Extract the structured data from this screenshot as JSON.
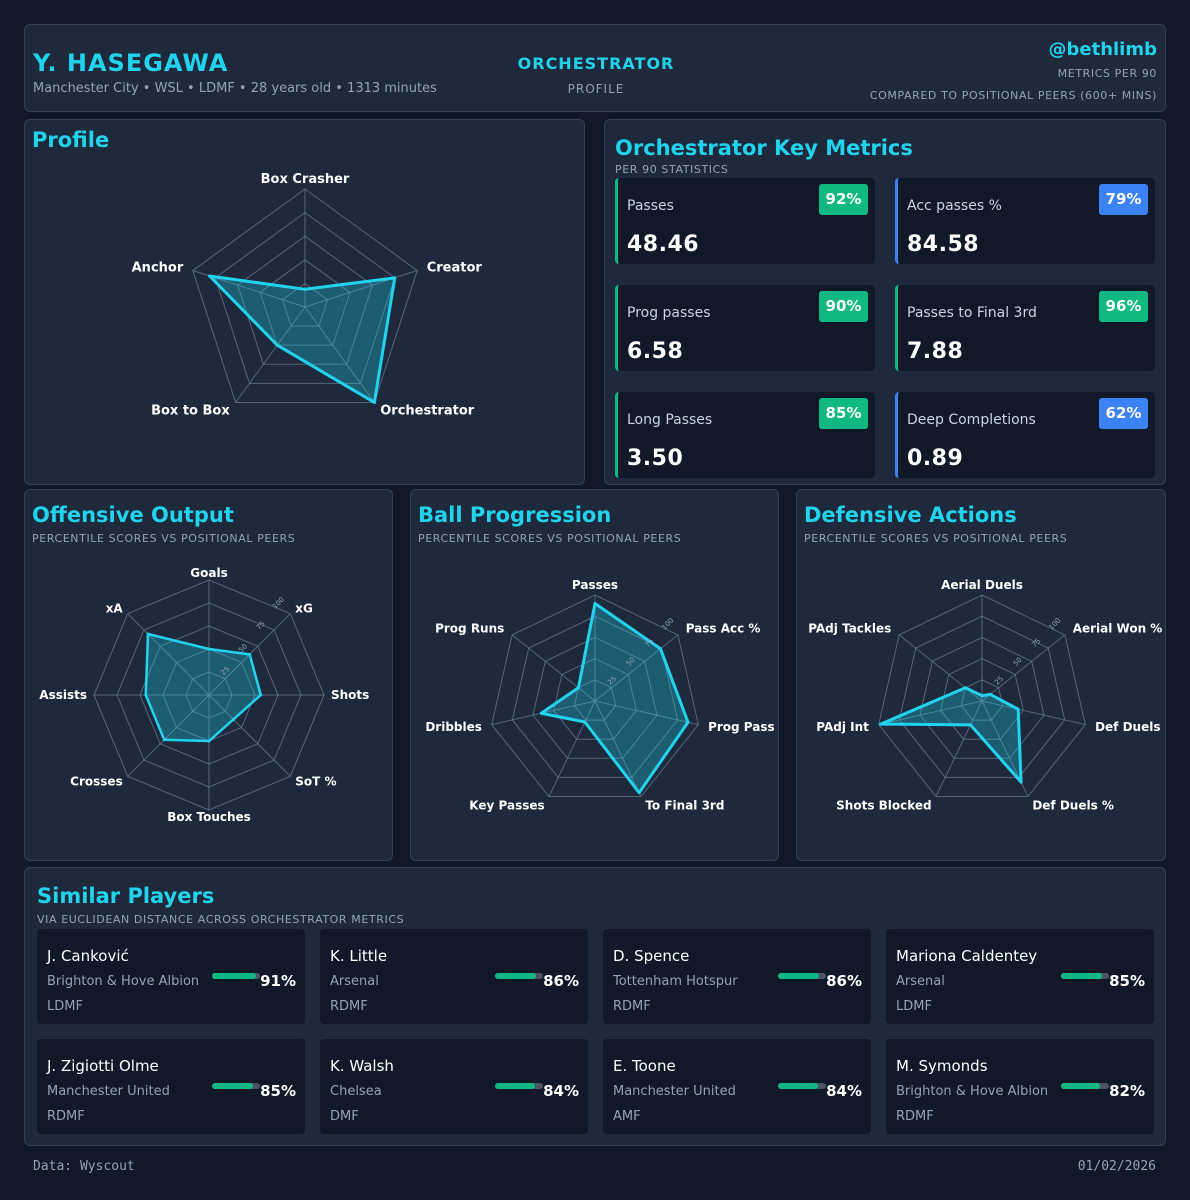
{
  "colors": {
    "accent": "#22d3ee",
    "green": "#10b981",
    "blue": "#3b82f6",
    "background": "#111827",
    "panel": "#1e293b",
    "grid": "#64748b"
  },
  "header": {
    "player_name": "Y. HASEGAWA",
    "meta": "Manchester City • WSL • LDMF • 28 years old • 1313 minutes",
    "archetype": "ORCHESTRATOR",
    "profile_label": "PROFILE",
    "handle": "@bethlimb",
    "metrics_note": "METRICS PER 90",
    "compared_note": "COMPARED TO POSITIONAL PEERS (600+ MINS)"
  },
  "profile": {
    "title": "Profile"
  },
  "key_metrics": {
    "title": "Orchestrator Key Metrics",
    "subtitle": "PER 90 STATISTICS",
    "items": [
      {
        "label": "Passes",
        "value": "48.46",
        "pct": "92%",
        "color": "#10b981"
      },
      {
        "label": "Acc passes %",
        "value": "84.58",
        "pct": "79%",
        "color": "#3b82f6"
      },
      {
        "label": "Prog passes",
        "value": "6.58",
        "pct": "90%",
        "color": "#10b981"
      },
      {
        "label": "Passes to Final 3rd",
        "value": "7.88",
        "pct": "96%",
        "color": "#10b981"
      },
      {
        "label": "Long Passes",
        "value": "3.50",
        "pct": "85%",
        "color": "#10b981"
      },
      {
        "label": "Deep Completions",
        "value": "0.89",
        "pct": "62%",
        "color": "#3b82f6"
      }
    ]
  },
  "offensive": {
    "title": "Offensive Output",
    "subtitle": "PERCENTILE SCORES VS POSITIONAL PEERS"
  },
  "progression": {
    "title": "Ball Progression",
    "subtitle": "PERCENTILE SCORES VS POSITIONAL PEERS"
  },
  "defensive": {
    "title": "Defensive Actions",
    "subtitle": "PERCENTILE SCORES VS POSITIONAL PEERS"
  },
  "similar": {
    "title": "Similar Players",
    "subtitle": "VIA EUCLIDEAN DISTANCE ACROSS ORCHESTRATOR METRICS",
    "players": [
      {
        "name": "J. Canković",
        "team": "Brighton & Hove Albion",
        "pos": "LDMF",
        "pct": "91%",
        "score": 91
      },
      {
        "name": "K. Little",
        "team": "Arsenal",
        "pos": "RDMF",
        "pct": "86%",
        "score": 86
      },
      {
        "name": "D. Spence",
        "team": "Tottenham Hotspur",
        "pos": "RDMF",
        "pct": "86%",
        "score": 86
      },
      {
        "name": "Mariona Caldentey",
        "team": "Arsenal",
        "pos": "LDMF",
        "pct": "85%",
        "score": 85
      },
      {
        "name": "J. Zigiotti Olme",
        "team": "Manchester United",
        "pos": "RDMF",
        "pct": "85%",
        "score": 85
      },
      {
        "name": "K. Walsh",
        "team": "Chelsea",
        "pos": "DMF",
        "pct": "84%",
        "score": 84
      },
      {
        "name": "E. Toone",
        "team": "Manchester United",
        "pos": "AMF",
        "pct": "84%",
        "score": 84
      },
      {
        "name": "M. Symonds",
        "team": "Brighton & Hove Albion",
        "pos": "RDMF",
        "pct": "82%",
        "score": 82
      }
    ]
  },
  "footer": {
    "source": "Data: Wyscout",
    "date": "01/02/2026"
  },
  "chart_data": [
    {
      "type": "radar",
      "id": "profile",
      "title": "Profile",
      "categories": [
        "Box Crasher",
        "Creator",
        "Orchestrator",
        "Box to Box",
        "Anchor"
      ],
      "values": [
        15,
        80,
        100,
        40,
        85
      ],
      "rlim": [
        0,
        100
      ],
      "rings": 5
    },
    {
      "type": "radar",
      "id": "offensive",
      "title": "Offensive Output",
      "categories": [
        "Goals",
        "xG",
        "Shots",
        "SoT %",
        "Box Touches",
        "Crosses",
        "Assists",
        "xA"
      ],
      "values": [
        40,
        50,
        45,
        30,
        40,
        55,
        55,
        75
      ],
      "rlim": [
        0,
        100
      ],
      "rings": 5,
      "tick_labels": [
        "25",
        "50",
        "75",
        "100"
      ]
    },
    {
      "type": "radar",
      "id": "progression",
      "title": "Ball Progression",
      "categories": [
        "Passes",
        "Pass Acc %",
        "Prog Pass",
        "To Final 3rd",
        "Key Passes",
        "Dribbles",
        "Prog Runs"
      ],
      "values": [
        92,
        79,
        90,
        96,
        22,
        52,
        20
      ],
      "rlim": [
        0,
        100
      ],
      "rings": 5,
      "tick_labels": [
        "25",
        "50",
        "75",
        "100"
      ]
    },
    {
      "type": "radar",
      "id": "defensive",
      "title": "Defensive Actions",
      "categories": [
        "Aerial Duels",
        "Aerial Won %",
        "Def Duels",
        "Def Duels %",
        "Shots Blocked",
        "PAdj Int",
        "PAdj Tackles"
      ],
      "values": [
        5,
        10,
        35,
        85,
        25,
        98,
        20
      ],
      "rlim": [
        0,
        100
      ],
      "rings": 5,
      "tick_labels": [
        "25",
        "50",
        "75",
        "100"
      ]
    }
  ]
}
